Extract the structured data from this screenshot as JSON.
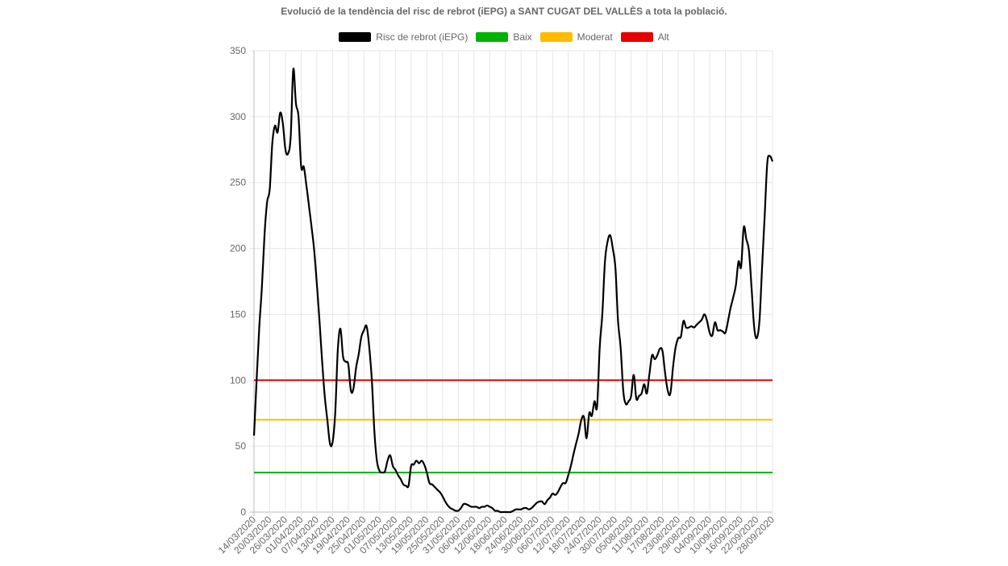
{
  "chart_data": {
    "type": "line",
    "title": "Evolució de la tendència del risc de rebrot (iEPG) a SANT CUGAT DEL VALLÈS a tota la població.",
    "xlabel": "",
    "ylabel": "",
    "ylim": [
      0,
      350
    ],
    "yticks": [
      "0",
      "50",
      "100",
      "150",
      "200",
      "250",
      "300",
      "350"
    ],
    "grid": true,
    "legend_position": "top",
    "x_tick_labels": [
      "14/03/2020",
      "20/03/2020",
      "26/03/2020",
      "01/04/2020",
      "07/04/2020",
      "13/04/2020",
      "19/04/2020",
      "25/04/2020",
      "01/05/2020",
      "07/05/2020",
      "13/05/2020",
      "19/05/2020",
      "25/05/2020",
      "31/05/2020",
      "06/06/2020",
      "12/06/2020",
      "18/06/2020",
      "24/06/2020",
      "30/06/2020",
      "06/07/2020",
      "12/07/2020",
      "18/07/2020",
      "24/07/2020",
      "30/07/2020",
      "05/08/2020",
      "11/08/2020",
      "17/08/2020",
      "23/08/2020",
      "29/08/2020",
      "04/09/2020",
      "10/09/2020",
      "16/09/2020",
      "22/09/2020",
      "28/09/2020"
    ],
    "series": [
      {
        "name": "Risc de rebrot (iEPG)",
        "color": "#000000",
        "points": [
          [
            0,
            58
          ],
          [
            1,
            100
          ],
          [
            2,
            140
          ],
          [
            3,
            170
          ],
          [
            4,
            210
          ],
          [
            5,
            235
          ],
          [
            6,
            245
          ],
          [
            7,
            280
          ],
          [
            8,
            293
          ],
          [
            9,
            288
          ],
          [
            10,
            303
          ],
          [
            11,
            295
          ],
          [
            12,
            275
          ],
          [
            13,
            272
          ],
          [
            14,
            285
          ],
          [
            15,
            336
          ],
          [
            16,
            310
          ],
          [
            17,
            300
          ],
          [
            18,
            262
          ],
          [
            19,
            262
          ],
          [
            20,
            248
          ],
          [
            21,
            232
          ],
          [
            22,
            216
          ],
          [
            23,
            198
          ],
          [
            24,
            173
          ],
          [
            25,
            145
          ],
          [
            26,
            115
          ],
          [
            27,
            88
          ],
          [
            28,
            70
          ],
          [
            29,
            52
          ],
          [
            30,
            53
          ],
          [
            31,
            75
          ],
          [
            32,
            123
          ],
          [
            33,
            139
          ],
          [
            34,
            118
          ],
          [
            35,
            114
          ],
          [
            36,
            112
          ],
          [
            37,
            92
          ],
          [
            38,
            94
          ],
          [
            39,
            110
          ],
          [
            40,
            120
          ],
          [
            41,
            133
          ],
          [
            42,
            138
          ],
          [
            43,
            141
          ],
          [
            44,
            125
          ],
          [
            45,
            100
          ],
          [
            46,
            60
          ],
          [
            47,
            38
          ],
          [
            48,
            31
          ],
          [
            49,
            30
          ],
          [
            50,
            31
          ],
          [
            51,
            39
          ],
          [
            52,
            43
          ],
          [
            53,
            35
          ],
          [
            54,
            32
          ],
          [
            55,
            28
          ],
          [
            56,
            25
          ],
          [
            57,
            21
          ],
          [
            58,
            20
          ],
          [
            59,
            20
          ],
          [
            60,
            35
          ],
          [
            61,
            36
          ],
          [
            62,
            39
          ],
          [
            63,
            37
          ],
          [
            64,
            39
          ],
          [
            65,
            36
          ],
          [
            66,
            30
          ],
          [
            67,
            22
          ],
          [
            68,
            21
          ],
          [
            69,
            19
          ],
          [
            70,
            17
          ],
          [
            71,
            15
          ],
          [
            72,
            12
          ],
          [
            73,
            8
          ],
          [
            74,
            5
          ],
          [
            75,
            3
          ],
          [
            76,
            2
          ],
          [
            77,
            1
          ],
          [
            78,
            1
          ],
          [
            79,
            3
          ],
          [
            80,
            6
          ],
          [
            81,
            6
          ],
          [
            82,
            5
          ],
          [
            83,
            4
          ],
          [
            84,
            4
          ],
          [
            85,
            4
          ],
          [
            86,
            3
          ],
          [
            87,
            4
          ],
          [
            88,
            4
          ],
          [
            89,
            5
          ],
          [
            90,
            4
          ],
          [
            91,
            3
          ],
          [
            92,
            1
          ],
          [
            93,
            1
          ],
          [
            94,
            0
          ],
          [
            95,
            0
          ],
          [
            96,
            0
          ],
          [
            97,
            0
          ],
          [
            98,
            0
          ],
          [
            99,
            1
          ],
          [
            100,
            2
          ],
          [
            101,
            2
          ],
          [
            102,
            2
          ],
          [
            103,
            3
          ],
          [
            104,
            3
          ],
          [
            105,
            2
          ],
          [
            106,
            3
          ],
          [
            107,
            5
          ],
          [
            108,
            7
          ],
          [
            109,
            8
          ],
          [
            110,
            8
          ],
          [
            111,
            6
          ],
          [
            112,
            9
          ],
          [
            113,
            11
          ],
          [
            114,
            14
          ],
          [
            115,
            13
          ],
          [
            116,
            15
          ],
          [
            117,
            19
          ],
          [
            118,
            22
          ],
          [
            119,
            22
          ],
          [
            120,
            28
          ],
          [
            121,
            35
          ],
          [
            122,
            44
          ],
          [
            123,
            52
          ],
          [
            124,
            60
          ],
          [
            125,
            70
          ],
          [
            126,
            72
          ],
          [
            127,
            56
          ],
          [
            128,
            75
          ],
          [
            129,
            73
          ],
          [
            130,
            84
          ],
          [
            131,
            80
          ],
          [
            132,
            125
          ],
          [
            133,
            150
          ],
          [
            134,
            190
          ],
          [
            135,
            205
          ],
          [
            136,
            210
          ],
          [
            137,
            200
          ],
          [
            138,
            185
          ],
          [
            139,
            145
          ],
          [
            140,
            125
          ],
          [
            141,
            92
          ],
          [
            142,
            82
          ],
          [
            143,
            84
          ],
          [
            144,
            88
          ],
          [
            145,
            104
          ],
          [
            146,
            86
          ],
          [
            147,
            88
          ],
          [
            148,
            90
          ],
          [
            149,
            97
          ],
          [
            150,
            90
          ],
          [
            151,
            105
          ],
          [
            152,
            119
          ],
          [
            153,
            116
          ],
          [
            154,
            119
          ],
          [
            155,
            124
          ],
          [
            156,
            122
          ],
          [
            157,
            105
          ],
          [
            158,
            92
          ],
          [
            159,
            90
          ],
          [
            160,
            110
          ],
          [
            161,
            125
          ],
          [
            162,
            132
          ],
          [
            163,
            133
          ],
          [
            164,
            145
          ],
          [
            165,
            140
          ],
          [
            166,
            140
          ],
          [
            167,
            141
          ],
          [
            168,
            140
          ],
          [
            169,
            142
          ],
          [
            170,
            144
          ],
          [
            171,
            146
          ],
          [
            172,
            150
          ],
          [
            173,
            145
          ],
          [
            174,
            136
          ],
          [
            175,
            134
          ],
          [
            176,
            144
          ],
          [
            177,
            138
          ],
          [
            178,
            138
          ],
          [
            179,
            137
          ],
          [
            180,
            136
          ],
          [
            181,
            145
          ],
          [
            182,
            155
          ],
          [
            183,
            163
          ],
          [
            184,
            172
          ],
          [
            185,
            190
          ],
          [
            186,
            186
          ],
          [
            187,
            216
          ],
          [
            188,
            207
          ],
          [
            189,
            198
          ],
          [
            190,
            170
          ],
          [
            191,
            140
          ],
          [
            192,
            132
          ],
          [
            193,
            145
          ],
          [
            194,
            185
          ],
          [
            195,
            225
          ],
          [
            196,
            265
          ],
          [
            197,
            270
          ],
          [
            198,
            266
          ]
        ]
      },
      {
        "name": "Baix",
        "color": "#00b300",
        "values": [
          30
        ]
      },
      {
        "name": "Moderat",
        "color": "#ffbb00",
        "values": [
          70
        ]
      },
      {
        "name": "Alt",
        "color": "#e60000",
        "values": [
          100
        ]
      }
    ]
  }
}
